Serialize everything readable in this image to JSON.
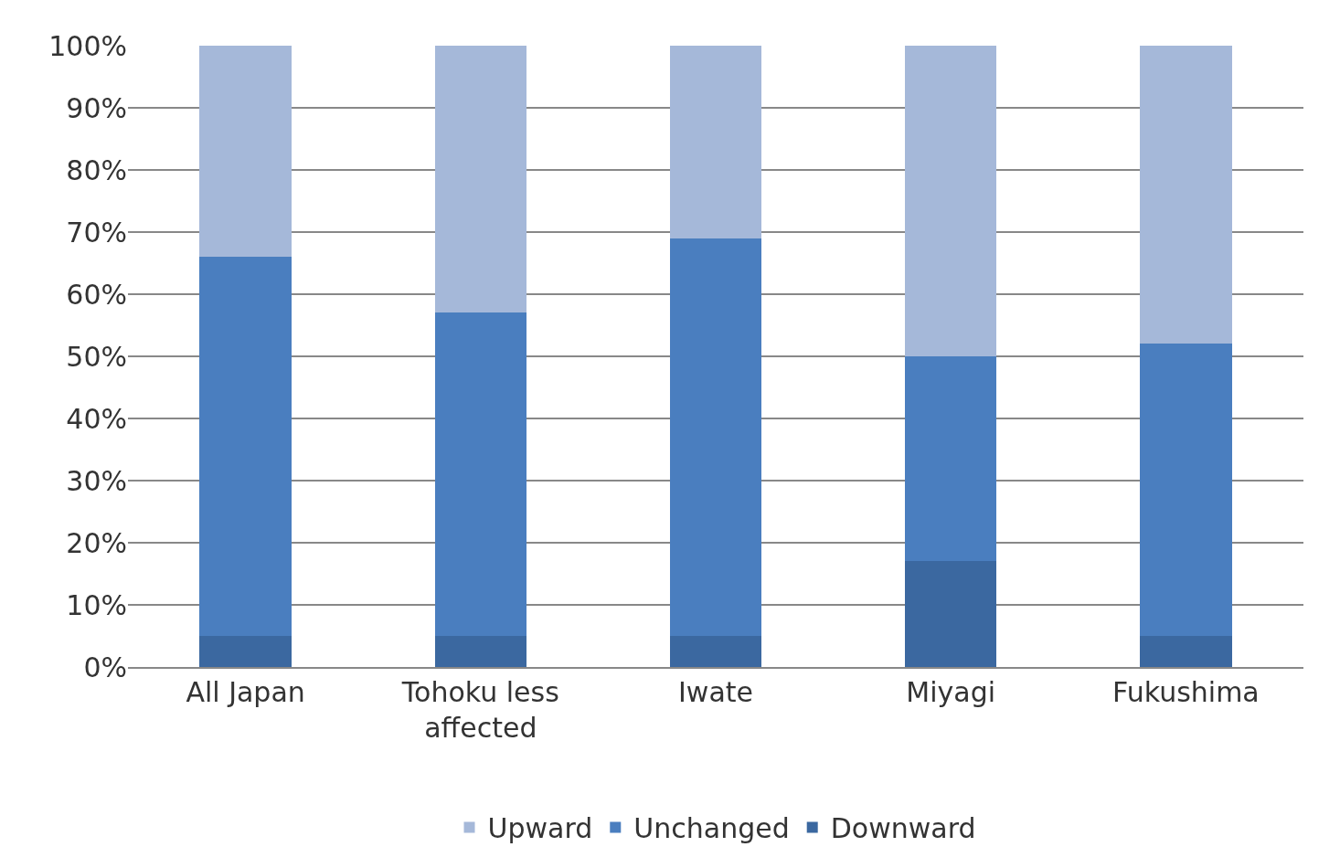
{
  "chart_data": {
    "type": "bar",
    "stacked": true,
    "categories": [
      "All Japan",
      "Tohoku less affected",
      "Iwate",
      "Miyagi",
      "Fukushima"
    ],
    "series": [
      {
        "name": "Downward",
        "color": "#3b68a0",
        "values": [
          5,
          5,
          5,
          17,
          5
        ]
      },
      {
        "name": "Unchanged",
        "color": "#4a7ebf",
        "values": [
          61,
          52,
          64,
          33,
          47
        ]
      },
      {
        "name": "Upward",
        "color": "#a5b8d9",
        "values": [
          34,
          43,
          31,
          50,
          48
        ]
      }
    ],
    "ylim": [
      0,
      100
    ],
    "yticks": [
      {
        "value": 0,
        "label": "0%"
      },
      {
        "value": 10,
        "label": "10%"
      },
      {
        "value": 20,
        "label": "20%"
      },
      {
        "value": 30,
        "label": "30%"
      },
      {
        "value": 40,
        "label": "40%"
      },
      {
        "value": 50,
        "label": "50%"
      },
      {
        "value": 60,
        "label": "60%"
      },
      {
        "value": 70,
        "label": "70%"
      },
      {
        "value": 80,
        "label": "80%"
      },
      {
        "value": 90,
        "label": "90%"
      },
      {
        "value": 100,
        "label": "100%"
      }
    ],
    "grid": "y",
    "legend": "bottom"
  }
}
